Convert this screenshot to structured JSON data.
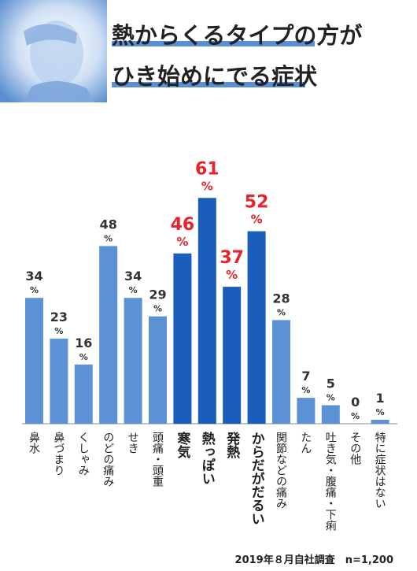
{
  "header": {
    "title_line1": "熱からくるタイプの方が",
    "title_line2": "ひき始めにでる症状"
  },
  "chart_data": {
    "type": "bar",
    "categories": [
      "鼻水",
      "鼻づまり",
      "くしゃみ",
      "のどの痛み",
      "せき",
      "頭痛・頭重",
      "寒気",
      "熱っぽい",
      "発熱",
      "からだがだるい",
      "関節などの痛み",
      "たん",
      "吐き気・腹痛・下痢",
      "その他",
      "特に症状はない"
    ],
    "values": [
      34,
      23,
      16,
      48,
      34,
      29,
      46,
      61,
      37,
      52,
      28,
      7,
      5,
      0,
      1
    ],
    "highlighted": [
      false,
      false,
      false,
      false,
      false,
      false,
      true,
      true,
      true,
      true,
      false,
      false,
      false,
      false,
      false
    ],
    "unit": "%",
    "colors": {
      "normal": "#5b92d6",
      "highlight": "#1a5dbb",
      "highlight_text": "#e8232a",
      "normal_text": "#333333"
    }
  },
  "footnote": "2019年８月自社調査　n=1,200"
}
